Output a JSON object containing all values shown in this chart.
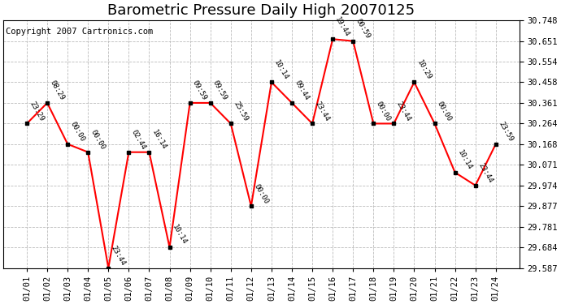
{
  "title": "Barometric Pressure Daily High 20070125",
  "copyright": "Copyright 2007 Cartronics.com",
  "dates": [
    "01/01",
    "01/02",
    "01/03",
    "01/04",
    "01/05",
    "01/06",
    "01/07",
    "01/08",
    "01/09",
    "01/10",
    "01/11",
    "01/12",
    "01/13",
    "01/14",
    "01/15",
    "01/16",
    "01/17",
    "01/18",
    "01/19",
    "01/20",
    "01/21",
    "01/22",
    "01/23",
    "01/24"
  ],
  "values": [
    30.264,
    30.361,
    30.168,
    30.13,
    29.587,
    30.13,
    30.13,
    29.684,
    30.361,
    30.361,
    30.264,
    29.877,
    30.458,
    30.361,
    30.264,
    30.66,
    30.651,
    30.264,
    30.264,
    30.458,
    30.264,
    30.035,
    29.974,
    30.168
  ],
  "labels": [
    "23:29",
    "08:29",
    "00:00",
    "00:00",
    "23:44",
    "02:44",
    "16:14",
    "10:14",
    "09:59",
    "09:59",
    "25:59",
    "00:00",
    "10:14",
    "09:44",
    "23:44",
    "19:44",
    "00:59",
    "00:00",
    "23:44",
    "10:29",
    "00:00",
    "10:14",
    "23:44",
    "23:59"
  ],
  "ylim_min": 29.587,
  "ylim_max": 30.748,
  "yticks": [
    29.587,
    29.684,
    29.781,
    29.877,
    29.974,
    30.071,
    30.168,
    30.264,
    30.361,
    30.458,
    30.554,
    30.651,
    30.748
  ],
  "line_color": "red",
  "marker_color": "black",
  "bg_color": "white",
  "grid_color": "#bbbbbb",
  "title_fontsize": 13,
  "label_fontsize": 6.5,
  "copyright_fontsize": 7.5,
  "tick_fontsize": 7.5
}
